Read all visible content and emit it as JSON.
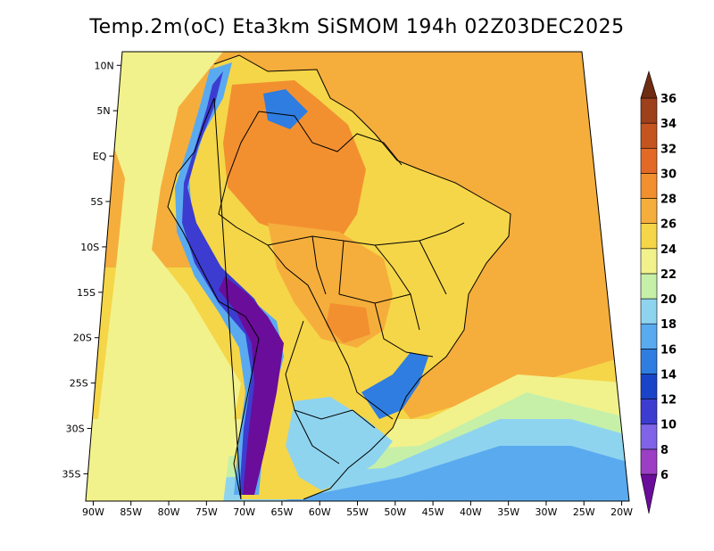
{
  "title": "Temp.2m(oC) Eta3km SiSMOM 194h 02Z03DEC2025",
  "map": {
    "longitude_labels": [
      "90W",
      "85W",
      "80W",
      "75W",
      "70W",
      "65W",
      "60W",
      "55W",
      "50W",
      "45W",
      "40W",
      "35W",
      "30W",
      "25W",
      "20W"
    ],
    "longitude_values": [
      -90,
      -85,
      -80,
      -75,
      -70,
      -65,
      -60,
      -55,
      -50,
      -45,
      -40,
      -35,
      -30,
      -25,
      -20
    ],
    "latitude_labels": [
      "10N",
      "5N",
      "EQ",
      "5S",
      "10S",
      "15S",
      "20S",
      "25S",
      "30S",
      "35S"
    ],
    "latitude_values": [
      10,
      5,
      0,
      -5,
      -10,
      -15,
      -20,
      -25,
      -30,
      -35
    ],
    "extent": {
      "lon": [
        -91,
        -19
      ],
      "lat": [
        -38,
        11.5
      ]
    }
  },
  "colorbar": {
    "labels": [
      "6",
      "8",
      "10",
      "12",
      "14",
      "16",
      "18",
      "20",
      "22",
      "24",
      "26",
      "28",
      "30",
      "32",
      "34",
      "36"
    ],
    "values": [
      6,
      8,
      10,
      12,
      14,
      16,
      18,
      20,
      22,
      24,
      26,
      28,
      30,
      32,
      34,
      36
    ],
    "colors": [
      "#6a0d9a",
      "#9c3fc4",
      "#7f64e8",
      "#3c3cd0",
      "#1a44c8",
      "#2f7de0",
      "#5aaaf0",
      "#8fd4ef",
      "#c6f0a8",
      "#f2f28c",
      "#f5d648",
      "#f5ae3c",
      "#f29030",
      "#e26a26",
      "#c45420",
      "#9e401c",
      "#6e2c12"
    ]
  },
  "field_colors": {
    "ocean_north": "#f5ae3c",
    "ocean_south_warm": "#f5d648",
    "ocean_south_mild": "#f2f28c",
    "ocean_south_cool": "#c6f0a8",
    "ocean_south_cold": "#8fd4ef",
    "ocean_south_colder": "#5aaaf0",
    "pacific_coast": "#f2f28c",
    "land_base": "#f5d648",
    "amazon_hot": "#f29030",
    "interior_warm": "#f5ae3c",
    "andes_cold": "#6a0d9a",
    "andes_cool": "#3c3cd0",
    "andes_mild": "#5aaaf0",
    "serra_cool": "#2f7de0",
    "pampas": "#8fd4ef"
  }
}
